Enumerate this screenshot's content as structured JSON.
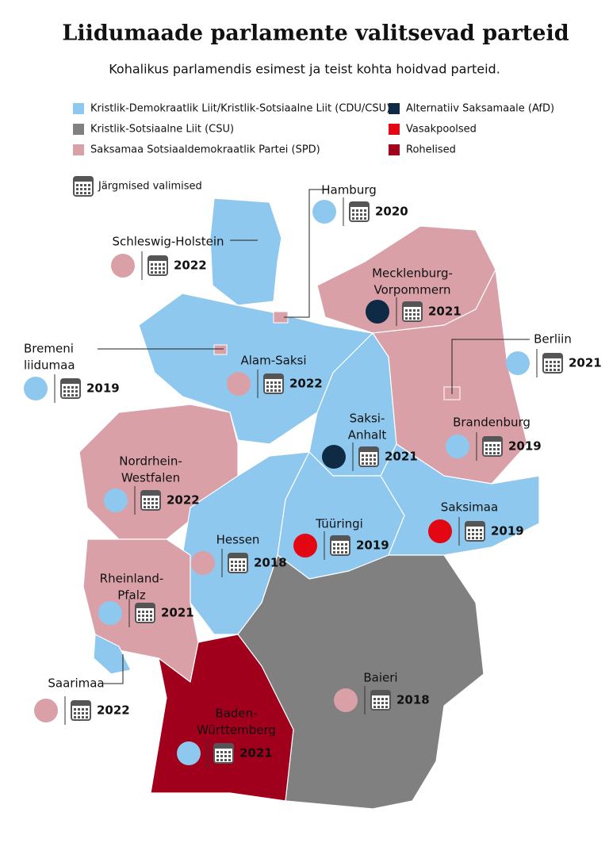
{
  "header": {
    "title": "Liidumaade parlamente valitsevad parteid",
    "subtitle": "Kohalikus parlamendis esimest ja teist kohta hoidvad parteid."
  },
  "legend": {
    "items": [
      {
        "label": "Kristlik-Demokraatlik Liit/Kristlik-Sotsiaalne Liit (CDU/CSU)",
        "color": "#8ec8ee"
      },
      {
        "label": "Kristlik-Sotsiaalne Liit (CSU)",
        "color": "#808080"
      },
      {
        "label": "Saksamaa Sotsiaaldemokraatlik Partei (SPD)",
        "color": "#d9a0a8"
      },
      {
        "label": "Alternatiiv Saksamaale (AfD)",
        "color": "#0e2a44"
      },
      {
        "label": "Vasakpoolsed",
        "color": "#e30613"
      },
      {
        "label": "Rohelised",
        "color": "#a1001c"
      }
    ],
    "next_election": "Järgmised valimised"
  },
  "states": [
    {
      "name": [
        "Hamburg"
      ],
      "circle": "#8ec8ee",
      "year": "2020"
    },
    {
      "name": [
        "Schleswig-Holstein"
      ],
      "circle": "#d9a0a8",
      "year": "2022"
    },
    {
      "name": [
        "Mecklenburg-",
        "Vorpommern"
      ],
      "circle": "#0e2a44",
      "year": "2021"
    },
    {
      "name": [
        "Berliin"
      ],
      "circle": "#8ec8ee",
      "year": "2021"
    },
    {
      "name": [
        "Bremeni",
        "liidumaa"
      ],
      "circle": "#8ec8ee",
      "year": "2019"
    },
    {
      "name": [
        "Alam-Saksi"
      ],
      "circle": "#d9a0a8",
      "year": "2022"
    },
    {
      "name": [
        "Saksi-",
        "Anhalt"
      ],
      "circle": "#0e2a44",
      "year": "2021"
    },
    {
      "name": [
        "Brandenburg"
      ],
      "circle": "#8ec8ee",
      "year": "2019"
    },
    {
      "name": [
        "Nordrhein-",
        "Westfalen"
      ],
      "circle": "#8ec8ee",
      "year": "2022"
    },
    {
      "name": [
        "Saksimaa"
      ],
      "circle": "#e30613",
      "year": "2019"
    },
    {
      "name": [
        "Tüüringi"
      ],
      "circle": "#e30613",
      "year": "2019"
    },
    {
      "name": [
        "Hessen"
      ],
      "circle": "#d9a0a8",
      "year": "2018"
    },
    {
      "name": [
        "Rheinland-",
        "Pfalz"
      ],
      "circle": "#8ec8ee",
      "year": "2021"
    },
    {
      "name": [
        "Saarimaa"
      ],
      "circle": "#d9a0a8",
      "year": "2022"
    },
    {
      "name": [
        "Baieri"
      ],
      "circle": "#d9a0a8",
      "year": "2018"
    },
    {
      "name": [
        "Baden-",
        "Württemberg"
      ],
      "circle": "#8ec8ee",
      "year": "2021"
    }
  ]
}
